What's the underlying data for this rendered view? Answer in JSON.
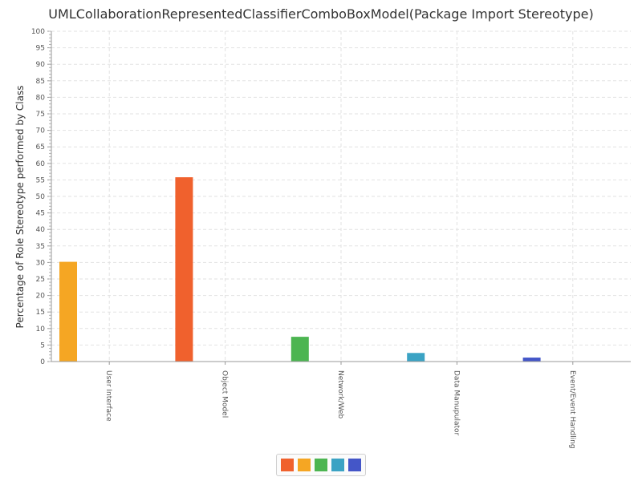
{
  "chart_data": {
    "type": "bar",
    "title": "UMLCollaborationRepresentedClassifierComboBoxModel(Package Import Stereotype)",
    "ylabel": "Percentage of Role Stereotype performed by Class",
    "xlabel": "",
    "ylim": [
      0,
      100
    ],
    "y_major_step": 5,
    "grid": true,
    "legend_position": "bottom",
    "categories": [
      "User Interface",
      "Object Model",
      "Network/Web",
      "Data Manupulator",
      "Event/Event Handling"
    ],
    "series": [
      {
        "color": "#f0612d",
        "values": [
          0,
          55.8,
          0,
          0,
          0
        ]
      },
      {
        "color": "#f5a623",
        "values": [
          30.2,
          0,
          0,
          0,
          0
        ]
      },
      {
        "color": "#4cb551",
        "values": [
          0,
          0,
          7.5,
          0,
          0
        ]
      },
      {
        "color": "#3ba3c4",
        "values": [
          0,
          0,
          0,
          2.6,
          0
        ]
      },
      {
        "color": "#4456c8",
        "values": [
          0,
          0,
          0,
          0,
          1.2
        ]
      }
    ]
  }
}
